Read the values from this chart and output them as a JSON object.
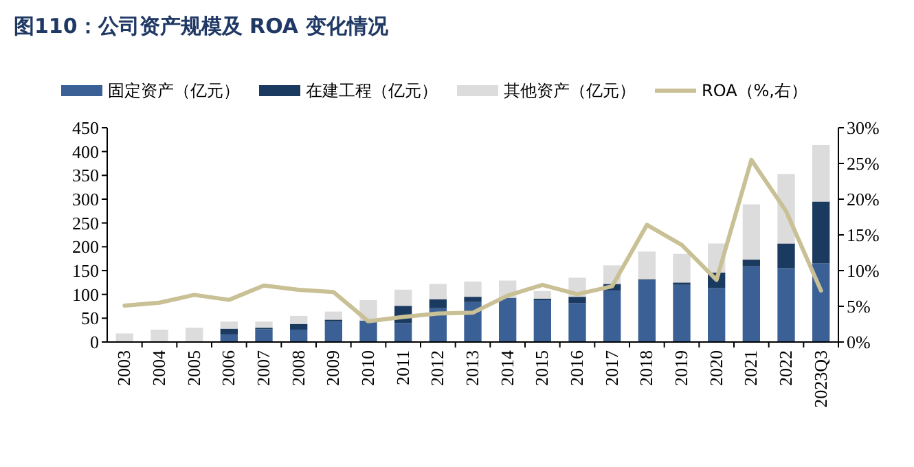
{
  "chart_data": {
    "type": "bar",
    "title": "图110：公司资产规模及 ROA 变化情况",
    "categories": [
      "2003",
      "2004",
      "2005",
      "2006",
      "2007",
      "2008",
      "2009",
      "2010",
      "2011",
      "2012",
      "2013",
      "2014",
      "2015",
      "2016",
      "2017",
      "2018",
      "2019",
      "2020",
      "2021",
      "2022",
      "2023Q3"
    ],
    "stacked": true,
    "series": [
      {
        "name": "固定资产（亿元）",
        "color": "#3b6096",
        "values": [
          0,
          0,
          0,
          16,
          27,
          26,
          43,
          45,
          40,
          71,
          84,
          93,
          88,
          82,
          108,
          130,
          120,
          113,
          159,
          155,
          165
        ]
      },
      {
        "name": "在建工程（亿元）",
        "color": "#1b3a5f",
        "values": [
          0,
          0,
          0,
          12,
          3,
          12,
          4,
          null,
          36,
          19,
          11,
          null,
          3,
          13,
          14,
          2,
          5,
          33,
          14,
          52,
          130
        ]
      },
      {
        "name": "其他资产（亿元）",
        "color": "#dcdcdc",
        "values": [
          18,
          26,
          30,
          15,
          13,
          17,
          17,
          43,
          34,
          32,
          32,
          36,
          16,
          40,
          39,
          58,
          60,
          61,
          116,
          146,
          119
        ]
      },
      {
        "name": "ROA（%,右）",
        "type": "line",
        "axis": "y2",
        "color": "#c9c095",
        "values": [
          5.1,
          5.5,
          6.6,
          5.9,
          7.9,
          7.3,
          7.0,
          2.9,
          3.5,
          4.0,
          4.1,
          6.5,
          8.0,
          6.7,
          7.8,
          16.4,
          13.6,
          8.7,
          25.5,
          18.3,
          7.2
        ]
      }
    ],
    "ylim": [
      0,
      450
    ],
    "yticks": [
      0,
      50,
      100,
      150,
      200,
      250,
      300,
      350,
      400,
      450
    ],
    "y2lim": [
      0,
      30
    ],
    "y2ticks": [
      {
        "value": 0,
        "label": "0%"
      },
      {
        "value": 5,
        "label": "5%"
      },
      {
        "value": 10,
        "label": "10%"
      },
      {
        "value": 15,
        "label": "15%"
      },
      {
        "value": 20,
        "label": "20%"
      },
      {
        "value": 25,
        "label": "25%"
      },
      {
        "value": 30,
        "label": "30%"
      }
    ],
    "legend": "top"
  }
}
